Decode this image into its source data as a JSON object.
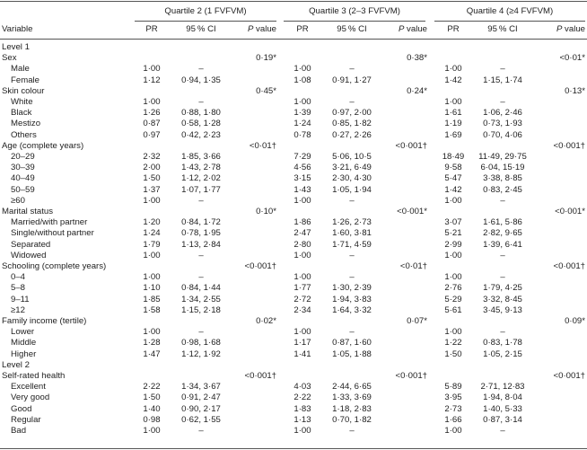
{
  "group_headers": [
    "Quartile 2 (1 FVFVM)",
    "Quartile 3 (2–3 FVFVM)",
    "Quartile 4 (≥4 FVFVM)"
  ],
  "col_headers": {
    "variable": "Variable",
    "pr": "PR",
    "ci": "95 % CI",
    "p": "P",
    "p_suffix": " value"
  },
  "rows": [
    {
      "type": "level",
      "label": "Level 1"
    },
    {
      "type": "cat",
      "label": "Sex",
      "p": [
        "0·19*",
        "0·38*",
        "<0·01*"
      ]
    },
    {
      "type": "sub",
      "label": "Male",
      "g": [
        [
          "1·00",
          "–"
        ],
        [
          "1·00",
          "–"
        ],
        [
          "1·00",
          "–"
        ]
      ]
    },
    {
      "type": "sub",
      "label": "Female",
      "g": [
        [
          "1·12",
          "0·94, 1·35"
        ],
        [
          "1·08",
          "0·91, 1·27"
        ],
        [
          "1·42",
          "1·15, 1·74"
        ]
      ]
    },
    {
      "type": "cat",
      "label": "Skin colour",
      "p": [
        "0·45*",
        "0·24*",
        "0·13*"
      ]
    },
    {
      "type": "sub",
      "label": "White",
      "g": [
        [
          "1·00",
          "–"
        ],
        [
          "1·00",
          "–"
        ],
        [
          "1·00",
          "–"
        ]
      ]
    },
    {
      "type": "sub",
      "label": "Black",
      "g": [
        [
          "1·26",
          "0·88, 1·80"
        ],
        [
          "1·39",
          "0·97, 2·00"
        ],
        [
          "1·61",
          "1·06, 2·46"
        ]
      ]
    },
    {
      "type": "sub",
      "label": "Mestizo",
      "g": [
        [
          "0·87",
          "0·58, 1·28"
        ],
        [
          "1·24",
          "0·85, 1·82"
        ],
        [
          "1·19",
          "0·73, 1·93"
        ]
      ]
    },
    {
      "type": "sub",
      "label": "Others",
      "g": [
        [
          "0·97",
          "0·42, 2·23"
        ],
        [
          "0·78",
          "0·27, 2·26"
        ],
        [
          "1·69",
          "0·70, 4·06"
        ]
      ]
    },
    {
      "type": "cat",
      "label": "Age (complete years)",
      "p": [
        "<0·01†",
        "<0·001†",
        "<0·001†"
      ]
    },
    {
      "type": "sub",
      "label": "20–29",
      "g": [
        [
          "2·32",
          "1·85, 3·66"
        ],
        [
          "7·29",
          "5·06, 10·5"
        ],
        [
          "18·49",
          "11·49, 29·75"
        ]
      ]
    },
    {
      "type": "sub",
      "label": "30–39",
      "g": [
        [
          "2·00",
          "1·43, 2·78"
        ],
        [
          "4·56",
          "3·21, 6·49"
        ],
        [
          "9·58",
          "6·04, 15·19"
        ]
      ]
    },
    {
      "type": "sub",
      "label": "40–49",
      "g": [
        [
          "1·50",
          "1·12, 2·02"
        ],
        [
          "3·15",
          "2·30, 4·30"
        ],
        [
          "5·47",
          "3·38, 8·85"
        ]
      ]
    },
    {
      "type": "sub",
      "label": "50–59",
      "g": [
        [
          "1·37",
          "1·07, 1·77"
        ],
        [
          "1·43",
          "1·05, 1·94"
        ],
        [
          "1·42",
          "0·83, 2·45"
        ]
      ]
    },
    {
      "type": "sub",
      "label": "≥60",
      "g": [
        [
          "1·00",
          "–"
        ],
        [
          "1·00",
          "–"
        ],
        [
          "1·00",
          "–"
        ]
      ]
    },
    {
      "type": "cat",
      "label": "Marital status",
      "p": [
        "0·10*",
        "<0·001*",
        "<0·001*"
      ]
    },
    {
      "type": "sub",
      "label": "Married/with partner",
      "g": [
        [
          "1·20",
          "0·84, 1·72"
        ],
        [
          "1·86",
          "1·26, 2·73"
        ],
        [
          "3·07",
          "1·61, 5·86"
        ]
      ]
    },
    {
      "type": "sub",
      "label": "Single/without partner",
      "g": [
        [
          "1·24",
          "0·78, 1·95"
        ],
        [
          "2·47",
          "1·60, 3·81"
        ],
        [
          "5·21",
          "2·82, 9·65"
        ]
      ]
    },
    {
      "type": "sub",
      "label": "Separated",
      "g": [
        [
          "1·79",
          "1·13, 2·84"
        ],
        [
          "2·80",
          "1·71, 4·59"
        ],
        [
          "2·99",
          "1·39, 6·41"
        ]
      ]
    },
    {
      "type": "sub",
      "label": "Widowed",
      "g": [
        [
          "1·00",
          "–"
        ],
        [
          "1·00",
          "–"
        ],
        [
          "1·00",
          "–"
        ]
      ]
    },
    {
      "type": "cat",
      "label": "Schooling (complete years)",
      "p": [
        "<0·001†",
        "<0·01†",
        "<0·001†"
      ]
    },
    {
      "type": "sub",
      "label": "0–4",
      "g": [
        [
          "1·00",
          "–"
        ],
        [
          "1·00",
          "–"
        ],
        [
          "1·00",
          "–"
        ]
      ]
    },
    {
      "type": "sub",
      "label": "5–8",
      "g": [
        [
          "1·10",
          "0·84, 1·44"
        ],
        [
          "1·77",
          "1·30, 2·39"
        ],
        [
          "2·76",
          "1·79, 4·25"
        ]
      ]
    },
    {
      "type": "sub",
      "label": "9–11",
      "g": [
        [
          "1·85",
          "1·34, 2·55"
        ],
        [
          "2·72",
          "1·94, 3·83"
        ],
        [
          "5·29",
          "3·32, 8·45"
        ]
      ]
    },
    {
      "type": "sub",
      "label": "≥12",
      "g": [
        [
          "1·58",
          "1·15, 2·18"
        ],
        [
          "2·34",
          "1·64, 3·32"
        ],
        [
          "5·61",
          "3·45, 9·13"
        ]
      ]
    },
    {
      "type": "cat",
      "label": "Family income (tertile)",
      "p": [
        "0·02*",
        "0·07*",
        "0·09*"
      ]
    },
    {
      "type": "sub",
      "label": "Lower",
      "g": [
        [
          "1·00",
          "–"
        ],
        [
          "1·00",
          "–"
        ],
        [
          "1·00",
          "–"
        ]
      ]
    },
    {
      "type": "sub",
      "label": "Middle",
      "g": [
        [
          "1·28",
          "0·98, 1·68"
        ],
        [
          "1·17",
          "0·87, 1·60"
        ],
        [
          "1·22",
          "0·83, 1·78"
        ]
      ]
    },
    {
      "type": "sub",
      "label": "Higher",
      "g": [
        [
          "1·47",
          "1·12, 1·92"
        ],
        [
          "1·41",
          "1·05, 1·88"
        ],
        [
          "1·50",
          "1·05, 2·15"
        ]
      ]
    },
    {
      "type": "level",
      "label": "Level 2"
    },
    {
      "type": "cat",
      "label": "Self-rated health",
      "p": [
        "<0·001†",
        "<0·001†",
        "<0·001†"
      ]
    },
    {
      "type": "sub",
      "label": "Excellent",
      "g": [
        [
          "2·22",
          "1·34, 3·67"
        ],
        [
          "4·03",
          "2·44, 6·65"
        ],
        [
          "5·89",
          "2·71, 12·83"
        ]
      ]
    },
    {
      "type": "sub",
      "label": "Very good",
      "g": [
        [
          "1·50",
          "0·91, 2·47"
        ],
        [
          "2·22",
          "1·33, 3·69"
        ],
        [
          "3·95",
          "1·94, 8·04"
        ]
      ]
    },
    {
      "type": "sub",
      "label": "Good",
      "g": [
        [
          "1·40",
          "0·90, 2·17"
        ],
        [
          "1·83",
          "1·18, 2·83"
        ],
        [
          "2·73",
          "1·40, 5·33"
        ]
      ]
    },
    {
      "type": "sub",
      "label": "Regular",
      "g": [
        [
          "0·98",
          "0·62, 1·55"
        ],
        [
          "1·13",
          "0·70, 1·82"
        ],
        [
          "1·66",
          "0·87, 3·14"
        ]
      ]
    },
    {
      "type": "sub",
      "label": "Bad",
      "g": [
        [
          "1·00",
          "–"
        ],
        [
          "1·00",
          "–"
        ],
        [
          "1·00",
          "–"
        ]
      ]
    }
  ]
}
